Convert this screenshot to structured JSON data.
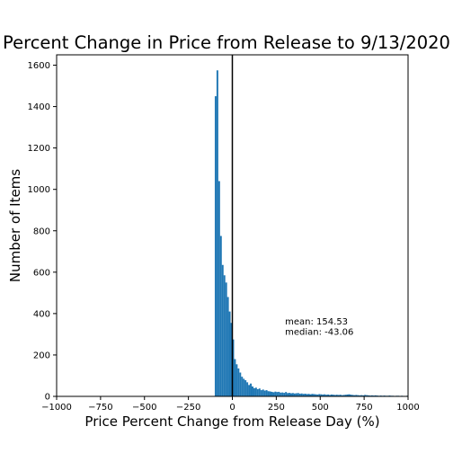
{
  "chart_data": {
    "type": "bar",
    "title": "Percent Change in Price from Release to 9/13/2020",
    "xlabel": "Price Percent Change from Release Day (%)",
    "ylabel": "Number of Items",
    "xlim": [
      -1000,
      1000
    ],
    "ylim": [
      0,
      1650
    ],
    "xticks": [
      -1000,
      -750,
      -500,
      -250,
      0,
      250,
      500,
      750,
      1000
    ],
    "xtick_labels": [
      "−1000",
      "−750",
      "−500",
      "−250",
      "0",
      "250",
      "500",
      "750",
      "1000"
    ],
    "yticks": [
      0,
      200,
      400,
      600,
      800,
      1000,
      1200,
      1400,
      1600
    ],
    "ytick_labels": [
      "0",
      "200",
      "400",
      "600",
      "800",
      "1000",
      "1200",
      "1400",
      "1600"
    ],
    "bin_width": 10,
    "bin_starts": [
      -100,
      -90,
      -80,
      -70,
      -60,
      -50,
      -40,
      -30,
      -20,
      -10,
      0,
      10,
      20,
      30,
      40,
      50,
      60,
      70,
      80,
      90,
      100,
      110,
      120,
      130,
      140,
      150,
      160,
      170,
      180,
      190,
      200,
      210,
      220,
      230,
      240,
      250,
      260,
      270,
      280,
      290,
      300,
      310,
      320,
      330,
      340,
      350,
      360,
      370,
      380,
      390,
      400,
      410,
      420,
      430,
      440,
      450,
      460,
      470,
      480,
      490,
      500,
      510,
      520,
      530,
      540,
      550,
      560,
      570,
      580,
      590,
      600,
      610,
      620,
      630,
      640,
      650,
      660,
      670,
      680,
      690,
      700,
      710,
      720,
      730,
      740,
      750,
      760,
      770,
      780,
      790,
      800,
      810,
      820,
      830,
      840,
      850,
      860,
      870,
      880,
      890,
      900,
      910,
      920,
      930,
      940,
      950,
      960,
      970,
      980,
      990
    ],
    "counts": [
      1450,
      1575,
      1040,
      775,
      635,
      585,
      550,
      480,
      410,
      355,
      275,
      180,
      155,
      135,
      115,
      95,
      85,
      78,
      68,
      55,
      62,
      48,
      40,
      42,
      35,
      38,
      30,
      33,
      28,
      30,
      25,
      24,
      22,
      20,
      23,
      21,
      22,
      18,
      19,
      17,
      21,
      16,
      17,
      15,
      16,
      14,
      15,
      16,
      13,
      14,
      12,
      13,
      11,
      12,
      10,
      12,
      11,
      10,
      9,
      11,
      10,
      9,
      10,
      8,
      9,
      7,
      9,
      8,
      7,
      8,
      7,
      8,
      6,
      7,
      8,
      9,
      10,
      8,
      7,
      6,
      7,
      6,
      5,
      6,
      5,
      7,
      6,
      5,
      4,
      5,
      4,
      5,
      4,
      3,
      4,
      3,
      4,
      3,
      3,
      4,
      3,
      3,
      2,
      3,
      3,
      2,
      3,
      2,
      2,
      3
    ],
    "color": "#1f77b4",
    "vline_x": 0,
    "vline_color": "#000000",
    "annotation": {
      "mean": "mean: 154.53",
      "median": "median: -43.06",
      "x": 300,
      "y_mean": 360,
      "y_median": 310
    }
  }
}
